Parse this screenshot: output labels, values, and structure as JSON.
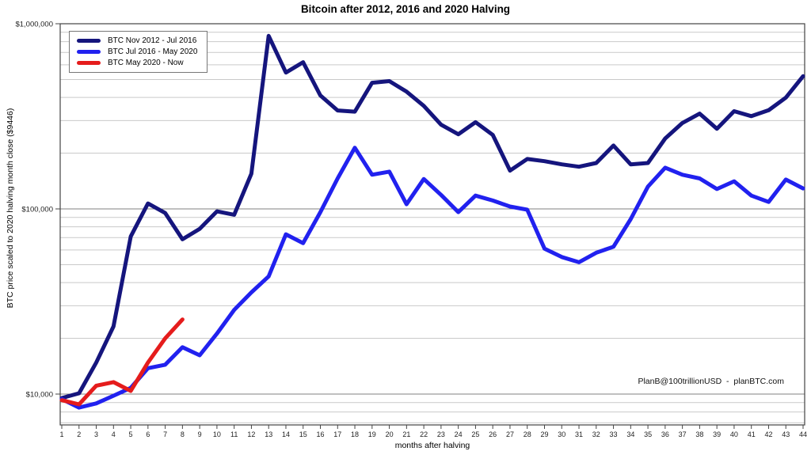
{
  "page_title": "Bitcoin after 2012, 2016 and 2020 Halving",
  "chart_data": {
    "type": "line",
    "title": "Bitcoin after 2012, 2016 and 2020 Halving",
    "xlabel": "months after halving",
    "ylabel": "BTC price scaled to 2020 halving month close ($9446)",
    "annotation": "PlanB@100trillionUSD  -  planBTC.com",
    "y_scale": "log",
    "grid": "log major + minor, horizontal only",
    "legend_position": "top-left",
    "ylim": [
      6800,
      1000000
    ],
    "y_ticks": [
      {
        "value": 10000,
        "label": "$10,000"
      },
      {
        "value": 100000,
        "label": "$100,000"
      },
      {
        "value": 1000000,
        "label": "$1,000,000"
      }
    ],
    "x": [
      1,
      2,
      3,
      4,
      5,
      6,
      7,
      8,
      9,
      10,
      11,
      12,
      13,
      14,
      15,
      16,
      17,
      18,
      19,
      20,
      21,
      22,
      23,
      24,
      25,
      26,
      27,
      28,
      29,
      30,
      31,
      32,
      33,
      34,
      35,
      36,
      37,
      38,
      39,
      40,
      41,
      42,
      43,
      44
    ],
    "series": [
      {
        "name": "BTC Nov 2012 - Jul 2016",
        "color": "#15157d",
        "values": [
          9520,
          10100,
          14800,
          23200,
          71000,
          107000,
          95000,
          68500,
          78000,
          97000,
          93000,
          155000,
          860000,
          545000,
          620000,
          410000,
          340000,
          335000,
          480000,
          490000,
          430000,
          360000,
          285000,
          253000,
          294000,
          251000,
          161000,
          186000,
          181000,
          174000,
          169000,
          177000,
          220000,
          174000,
          177000,
          240000,
          291000,
          327000,
          271000,
          337000,
          317000,
          341000,
          399000,
          521000
        ]
      },
      {
        "name": "BTC Jul 2016 - May 2020",
        "color": "#2121ef",
        "values": [
          9400,
          8450,
          8900,
          9800,
          10800,
          13800,
          14400,
          17900,
          16200,
          21200,
          28500,
          35400,
          43200,
          72900,
          65300,
          96000,
          146000,
          214000,
          153000,
          159000,
          106000,
          145000,
          119000,
          96000,
          118000,
          111000,
          103000,
          99000,
          61000,
          55000,
          51500,
          58000,
          62500,
          88000,
          132000,
          167000,
          153000,
          146000,
          128000,
          141000,
          118000,
          109000,
          144000,
          129000
        ]
      },
      {
        "name": "BTC May 2020 - Now",
        "color": "#e51c1c",
        "values": [
          9270,
          8800,
          11100,
          11600,
          10400,
          14800,
          20000,
          25300
        ]
      }
    ]
  }
}
